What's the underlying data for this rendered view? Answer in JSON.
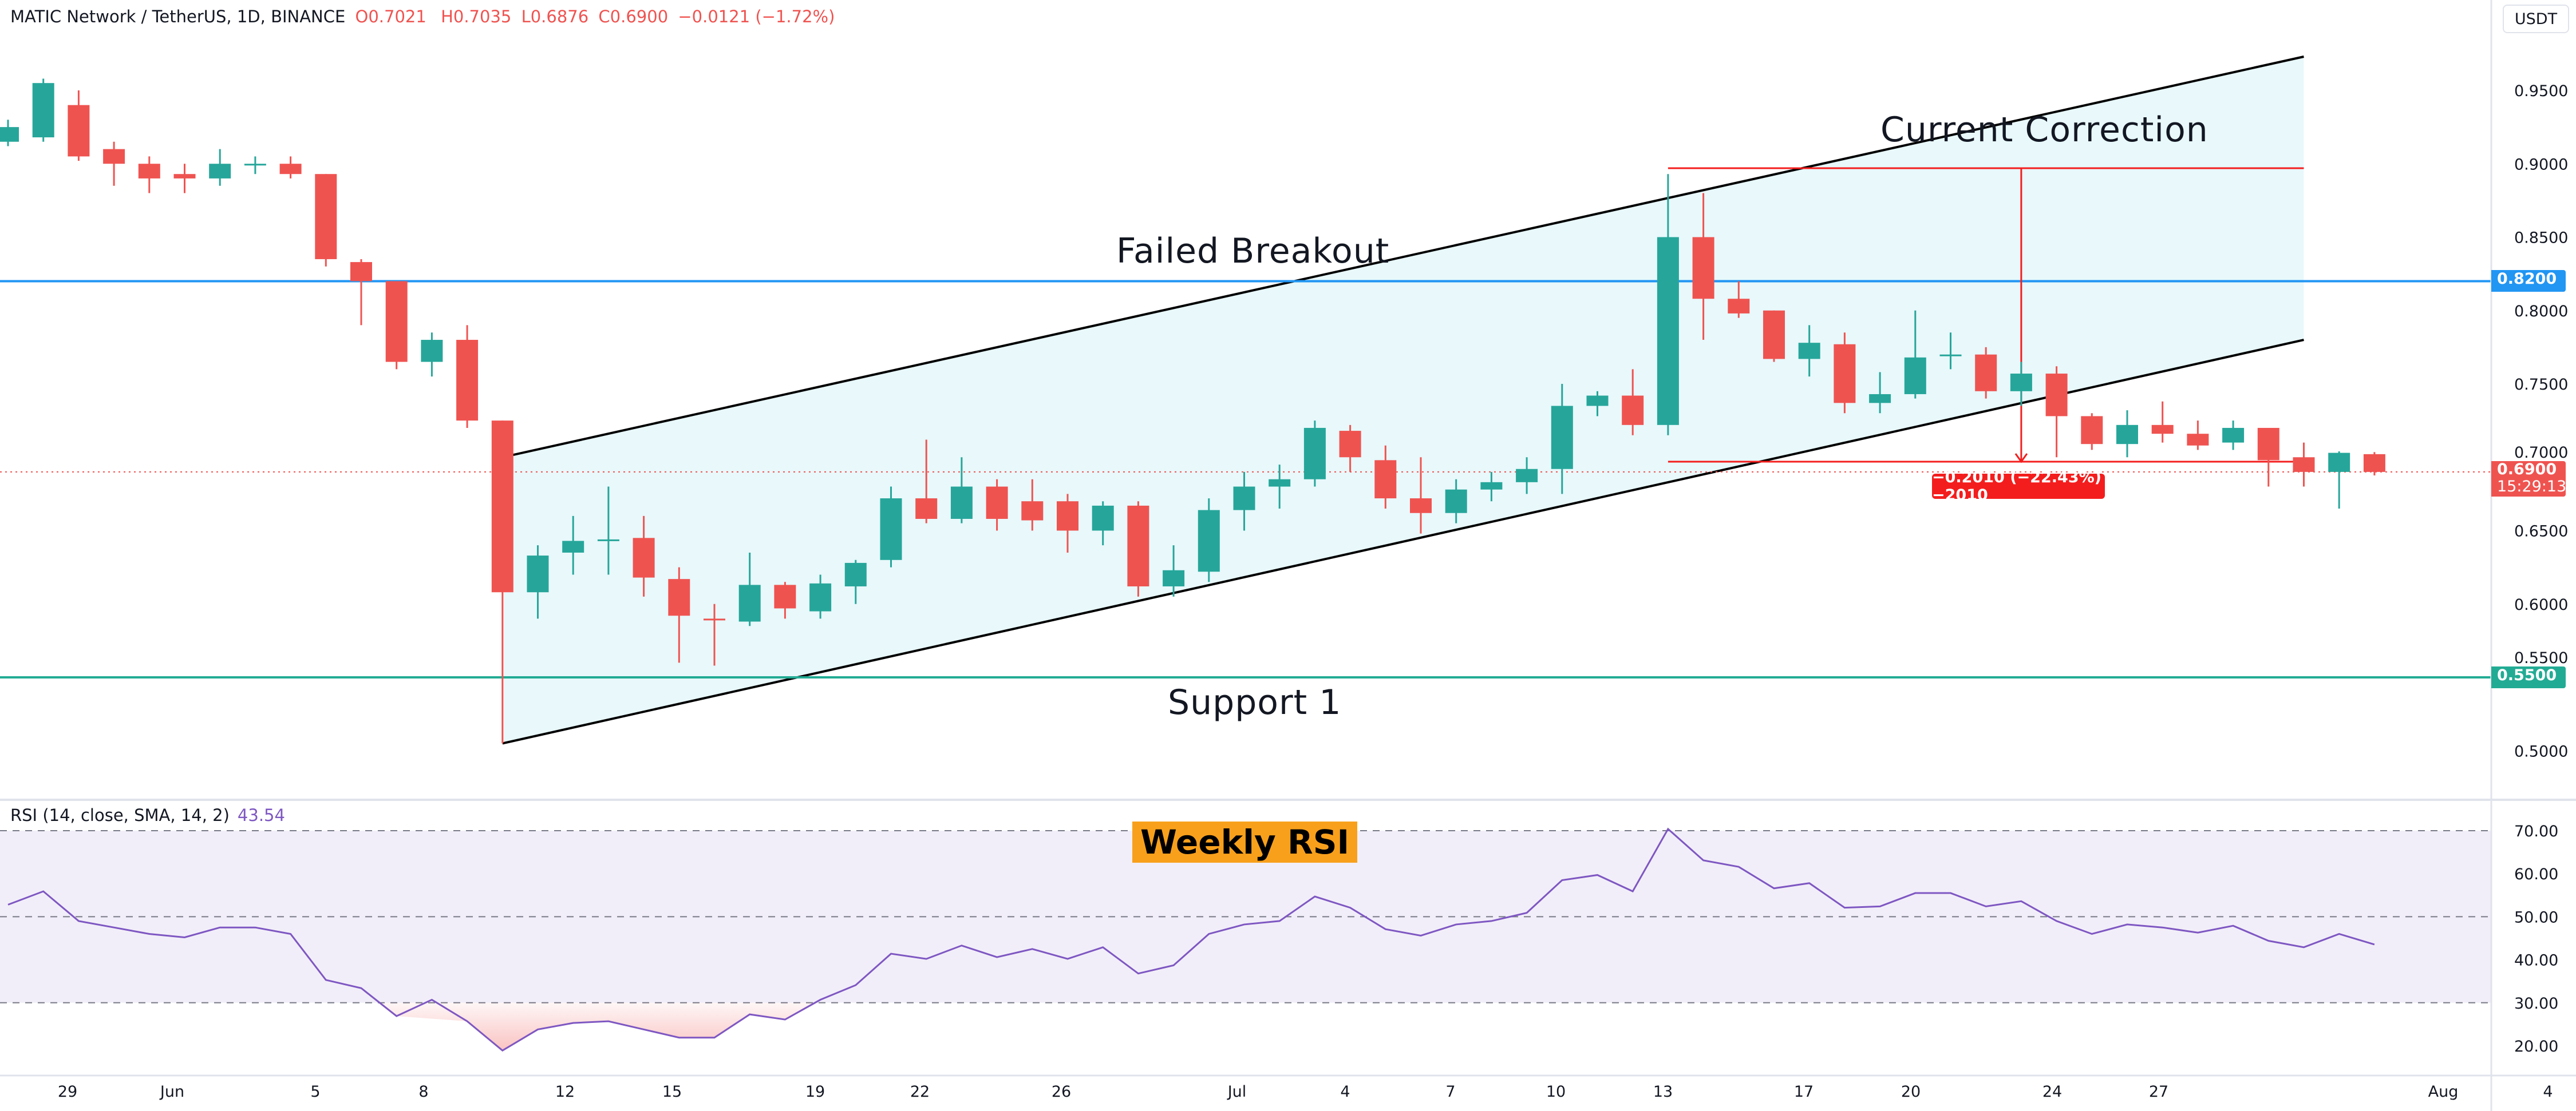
{
  "header": {
    "symbol": "MATIC Network / TetherUS, 1D, BINANCE",
    "open": "O0.7021",
    "high": "H0.7035",
    "low": "L0.6876",
    "close": "C0.6900",
    "change": "−0.0121 (−1.72%)"
  },
  "currency_button": "USDT",
  "rsi_header": {
    "label": "RSI (14, close, SMA, 14, 2)",
    "value": "43.54"
  },
  "annotations": {
    "current_correction": "Current Correction",
    "failed_breakout": "Failed Breakout",
    "support_1": "Support 1",
    "weekly_rsi": "Weekly RSI",
    "measure_label": "−0.2010 (−22.43%) −2010"
  },
  "price_tags": {
    "resistance": "0.8200",
    "support": "0.5500",
    "last_price": "0.6900",
    "countdown": "15:29:13"
  },
  "colors": {
    "up": "#26a69a",
    "down": "#ef5350",
    "resistance": "#2196f3",
    "support": "#22ab94",
    "rsi": "#7e57c2",
    "channel_fill": "#e8f8fb",
    "highlight": "#f8a01c",
    "measure": "#f41d1d"
  },
  "chart_data": {
    "type": "candlestick",
    "price_axis": {
      "ticks": [
        "0.9500",
        "0.9000",
        "0.8500",
        "0.8000",
        "0.7500",
        "0.7000",
        "0.6500",
        "0.6000",
        "0.5500",
        "0.5000"
      ],
      "range": [
        0.48,
        0.98
      ]
    },
    "x_axis": {
      "ticks": [
        "29",
        "Jun",
        "5",
        "8",
        "12",
        "15",
        "19",
        "22",
        "26",
        "Jul",
        "4",
        "7",
        "10",
        "13",
        "17",
        "20",
        "24",
        "27",
        "Aug",
        "4"
      ]
    },
    "ohlc": [
      [
        0.915,
        0.93,
        0.912,
        0.925
      ],
      [
        0.918,
        0.958,
        0.915,
        0.955
      ],
      [
        0.94,
        0.95,
        0.902,
        0.905
      ],
      [
        0.91,
        0.915,
        0.885,
        0.9
      ],
      [
        0.9,
        0.905,
        0.88,
        0.89
      ],
      [
        0.893,
        0.9,
        0.88,
        0.89
      ],
      [
        0.89,
        0.91,
        0.885,
        0.9
      ],
      [
        0.9,
        0.905,
        0.893,
        0.9
      ],
      [
        0.9,
        0.905,
        0.89,
        0.893
      ],
      [
        0.893,
        0.893,
        0.83,
        0.835
      ],
      [
        0.833,
        0.835,
        0.79,
        0.82
      ],
      [
        0.82,
        0.82,
        0.76,
        0.765
      ],
      [
        0.765,
        0.785,
        0.755,
        0.78
      ],
      [
        0.78,
        0.79,
        0.72,
        0.725
      ],
      [
        0.725,
        0.725,
        0.505,
        0.608
      ],
      [
        0.608,
        0.64,
        0.59,
        0.633
      ],
      [
        0.635,
        0.66,
        0.62,
        0.643
      ],
      [
        0.643,
        0.68,
        0.62,
        0.644
      ],
      [
        0.645,
        0.66,
        0.605,
        0.618
      ],
      [
        0.617,
        0.625,
        0.56,
        0.592
      ],
      [
        0.59,
        0.6,
        0.558,
        0.589
      ],
      [
        0.588,
        0.635,
        0.585,
        0.613
      ],
      [
        0.613,
        0.615,
        0.59,
        0.597
      ],
      [
        0.595,
        0.62,
        0.59,
        0.614
      ],
      [
        0.612,
        0.63,
        0.6,
        0.628
      ],
      [
        0.63,
        0.68,
        0.625,
        0.672
      ],
      [
        0.672,
        0.712,
        0.655,
        0.658
      ],
      [
        0.658,
        0.7,
        0.655,
        0.68
      ],
      [
        0.68,
        0.685,
        0.65,
        0.658
      ],
      [
        0.67,
        0.685,
        0.65,
        0.657
      ],
      [
        0.67,
        0.675,
        0.635,
        0.65
      ],
      [
        0.65,
        0.67,
        0.64,
        0.667
      ],
      [
        0.667,
        0.67,
        0.605,
        0.612
      ],
      [
        0.612,
        0.64,
        0.605,
        0.623
      ],
      [
        0.622,
        0.672,
        0.615,
        0.664
      ],
      [
        0.664,
        0.69,
        0.65,
        0.68
      ],
      [
        0.68,
        0.695,
        0.665,
        0.685
      ],
      [
        0.685,
        0.725,
        0.68,
        0.72
      ],
      [
        0.718,
        0.722,
        0.69,
        0.7
      ],
      [
        0.698,
        0.708,
        0.665,
        0.672
      ],
      [
        0.672,
        0.7,
        0.648,
        0.662
      ],
      [
        0.662,
        0.685,
        0.655,
        0.678
      ],
      [
        0.678,
        0.69,
        0.67,
        0.683
      ],
      [
        0.683,
        0.7,
        0.675,
        0.692
      ],
      [
        0.692,
        0.75,
        0.675,
        0.735
      ],
      [
        0.735,
        0.745,
        0.728,
        0.742
      ],
      [
        0.742,
        0.76,
        0.715,
        0.722
      ],
      [
        0.722,
        0.893,
        0.715,
        0.85
      ],
      [
        0.85,
        0.88,
        0.78,
        0.808
      ],
      [
        0.808,
        0.82,
        0.795,
        0.798
      ],
      [
        0.8,
        0.8,
        0.765,
        0.767
      ],
      [
        0.767,
        0.79,
        0.755,
        0.778
      ],
      [
        0.777,
        0.785,
        0.73,
        0.737
      ],
      [
        0.737,
        0.758,
        0.73,
        0.743
      ],
      [
        0.743,
        0.8,
        0.74,
        0.768
      ],
      [
        0.77,
        0.785,
        0.76,
        0.77
      ],
      [
        0.77,
        0.775,
        0.74,
        0.745
      ],
      [
        0.745,
        0.765,
        0.735,
        0.757
      ],
      [
        0.757,
        0.762,
        0.7,
        0.728
      ],
      [
        0.728,
        0.73,
        0.705,
        0.709
      ],
      [
        0.709,
        0.732,
        0.7,
        0.722
      ],
      [
        0.722,
        0.738,
        0.71,
        0.716
      ],
      [
        0.716,
        0.725,
        0.705,
        0.708
      ],
      [
        0.71,
        0.725,
        0.705,
        0.72
      ],
      [
        0.72,
        0.72,
        0.68,
        0.698
      ],
      [
        0.7,
        0.71,
        0.68,
        0.69
      ],
      [
        0.69,
        0.704,
        0.665,
        0.703
      ],
      [
        0.7021,
        0.7035,
        0.6876,
        0.69
      ]
    ],
    "horizontal_levels": [
      {
        "price": 0.82,
        "role": "resistance"
      },
      {
        "price": 0.55,
        "role": "support"
      },
      {
        "price": 0.69,
        "role": "last_price",
        "style": "dotted"
      }
    ],
    "channel": {
      "upper": [
        [
          14,
          0.7
        ],
        [
          65,
          0.973
        ]
      ],
      "lower": [
        [
          14,
          0.505
        ],
        [
          65,
          0.78
        ]
      ]
    },
    "measure": {
      "from_index": 47,
      "to_index": 65,
      "at_index": 57,
      "top": 0.897,
      "bottom": 0.697
    },
    "rsi": {
      "axis_ticks": [
        "70.00",
        "60.00",
        "50.00",
        "40.00",
        "30.00",
        "20.00"
      ],
      "range": [
        15,
        75
      ],
      "bands": [
        70,
        50,
        30
      ],
      "values": [
        52.8,
        55.9,
        49,
        47.5,
        46,
        45.2,
        47.5,
        47.5,
        46,
        35.3,
        33.4,
        26.9,
        30.7,
        25.7,
        18.9,
        23.8,
        25.3,
        25.7,
        23.8,
        21.9,
        21.9,
        27.3,
        26.1,
        30.7,
        34.1,
        41.4,
        40.2,
        43.3,
        40.6,
        42.5,
        40.2,
        42.9,
        36.8,
        38.7,
        46,
        48.2,
        49,
        54.7,
        52.1,
        47.1,
        45.6,
        48.2,
        49,
        50.9,
        58.5,
        59.7,
        55.9,
        70.4,
        63.1,
        61.6,
        56.6,
        57.8,
        52.1,
        52.4,
        55.5,
        55.5,
        52.4,
        53.6,
        49,
        46,
        48.2,
        47.5,
        46.3,
        47.9,
        44.4,
        42.9,
        46,
        43.54
      ]
    }
  }
}
